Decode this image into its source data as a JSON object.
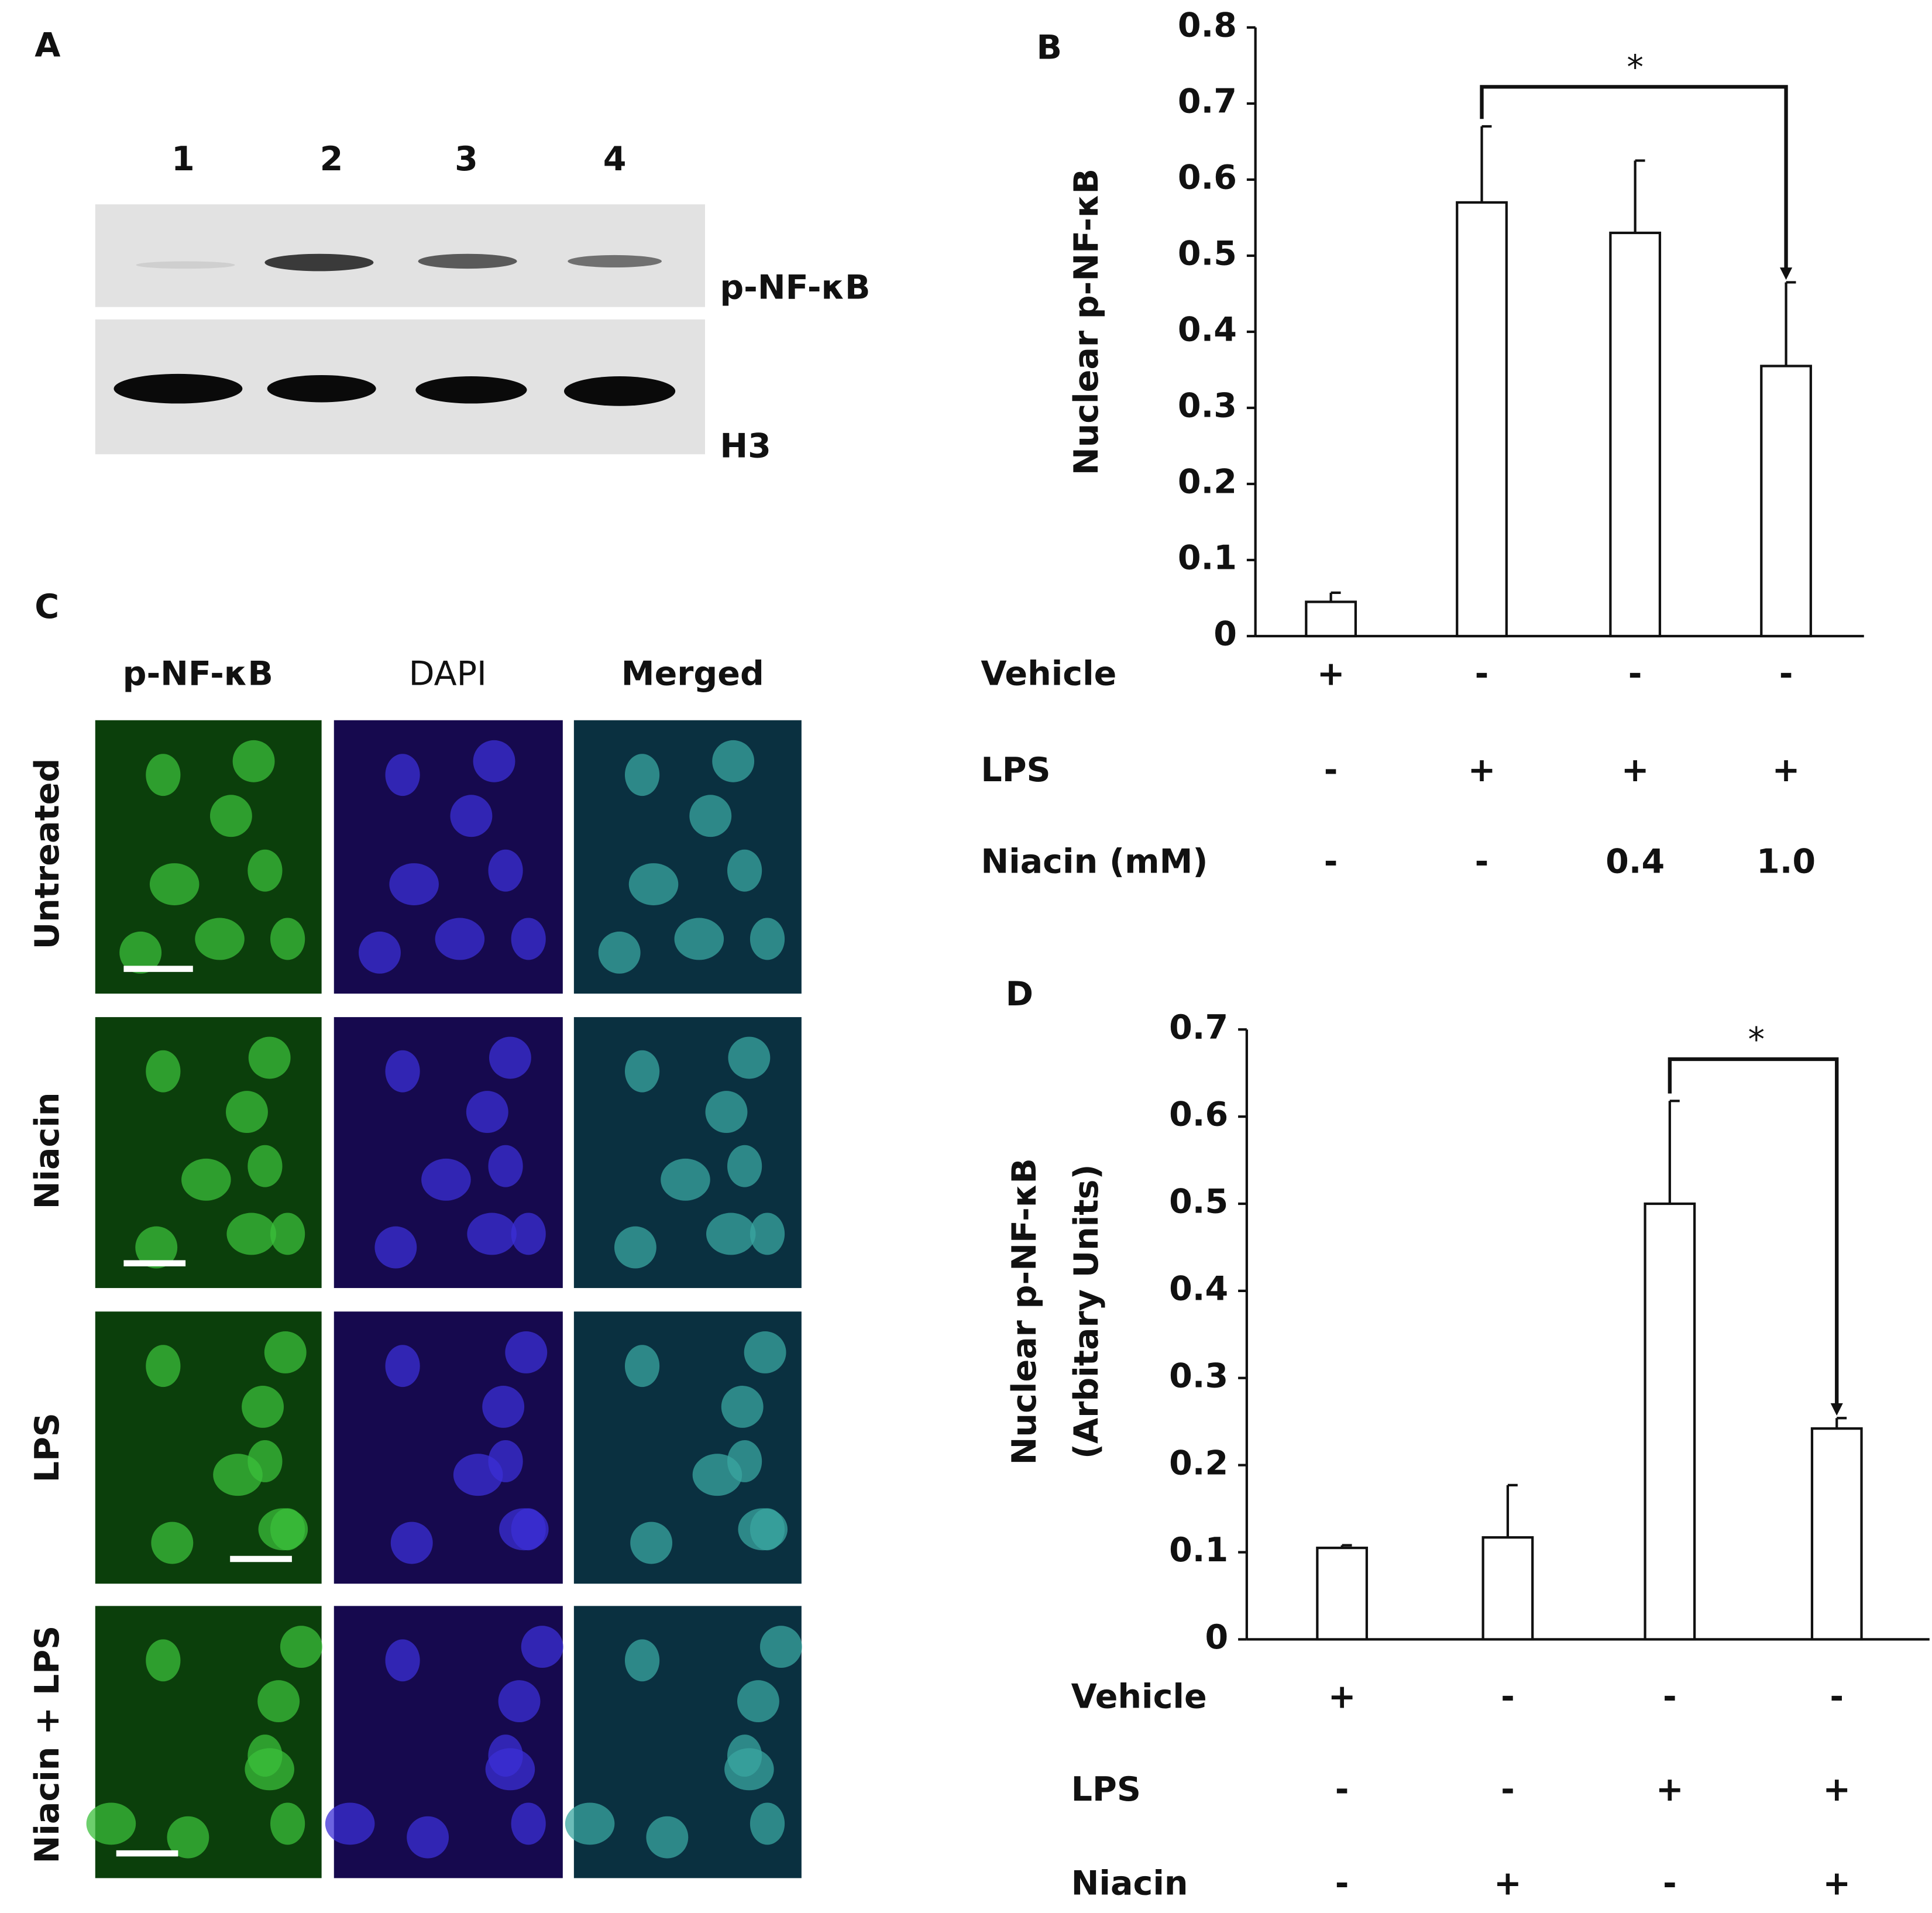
{
  "figure": {
    "panels": [
      "A",
      "B",
      "C",
      "D"
    ],
    "blot": {
      "lanes": [
        "1",
        "2",
        "3",
        "4"
      ],
      "bands": [
        "p-NF-κB",
        "H3"
      ]
    },
    "microscopy": {
      "columns": [
        "p-NF-κB",
        "DAPI",
        "Merged"
      ],
      "rows": [
        "Untreated",
        "Niacin",
        "LPS",
        "Niacin + LPS"
      ]
    }
  },
  "chart_data": [
    {
      "type": "bar",
      "ylabel": [
        "Nuclear p-NF-κB"
      ],
      "values": [
        0.045,
        0.57,
        0.53,
        0.355
      ],
      "errors": [
        0.012,
        0.1,
        0.095,
        0.11
      ],
      "color": "#ffffff",
      "ylim": [
        0,
        0.8
      ],
      "yticks": [
        0,
        0.1,
        0.2,
        0.3,
        0.4,
        0.5,
        0.6,
        0.7,
        0.8
      ],
      "conditions": [
        {
          "name": "Vehicle",
          "values": [
            "+",
            "-",
            "-",
            "-"
          ]
        },
        {
          "name": "LPS",
          "values": [
            "-",
            "+",
            "+",
            "+"
          ]
        },
        {
          "name": "Niacin (mM)",
          "values": [
            "-",
            "-",
            "0.4",
            "1.0"
          ]
        }
      ],
      "annotations": [
        "*"
      ]
    },
    {
      "type": "bar",
      "ylabel": [
        "Nuclear p-NF-κB",
        "(Arbitary Units)"
      ],
      "values": [
        0.105,
        0.117,
        0.5,
        0.242
      ],
      "errors": [
        0.003,
        0.06,
        0.118,
        0.012
      ],
      "color": "#ffffff",
      "ylim": [
        0,
        0.7
      ],
      "yticks": [
        0,
        0.1,
        0.2,
        0.3,
        0.4,
        0.5,
        0.6,
        0.7
      ],
      "conditions": [
        {
          "name": "Vehicle",
          "values": [
            "+",
            "-",
            "-",
            "-"
          ]
        },
        {
          "name": "LPS",
          "values": [
            "-",
            "-",
            "+",
            "+"
          ]
        },
        {
          "name": "Niacin",
          "values": [
            "-",
            "+",
            "-",
            "+"
          ]
        }
      ],
      "annotations": [
        "*"
      ]
    }
  ]
}
